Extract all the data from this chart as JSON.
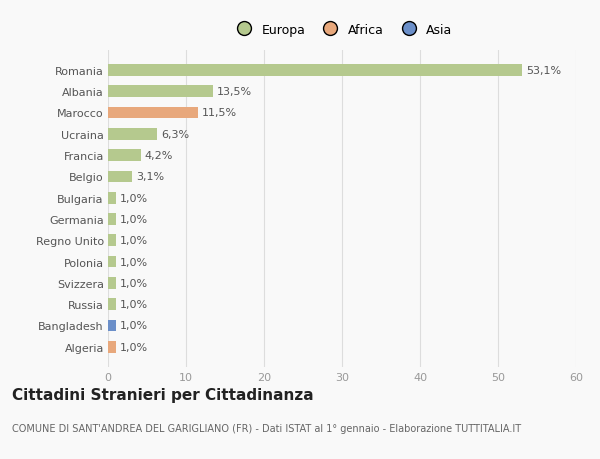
{
  "categories": [
    "Romania",
    "Albania",
    "Marocco",
    "Ucraina",
    "Francia",
    "Belgio",
    "Bulgaria",
    "Germania",
    "Regno Unito",
    "Polonia",
    "Svizzera",
    "Russia",
    "Bangladesh",
    "Algeria"
  ],
  "values": [
    53.1,
    13.5,
    11.5,
    6.3,
    4.2,
    3.1,
    1.0,
    1.0,
    1.0,
    1.0,
    1.0,
    1.0,
    1.0,
    1.0
  ],
  "labels": [
    "53,1%",
    "13,5%",
    "11,5%",
    "6,3%",
    "4,2%",
    "3,1%",
    "1,0%",
    "1,0%",
    "1,0%",
    "1,0%",
    "1,0%",
    "1,0%",
    "1,0%",
    "1,0%"
  ],
  "colors": [
    "#b5c98e",
    "#b5c98e",
    "#e8a87c",
    "#b5c98e",
    "#b5c98e",
    "#b5c98e",
    "#b5c98e",
    "#b5c98e",
    "#b5c98e",
    "#b5c98e",
    "#b5c98e",
    "#b5c98e",
    "#6b8fc9",
    "#e8a87c"
  ],
  "legend_labels": [
    "Europa",
    "Africa",
    "Asia"
  ],
  "legend_colors": [
    "#b5c98e",
    "#e8a87c",
    "#6b8fc9"
  ],
  "xlim": [
    0,
    60
  ],
  "xticks": [
    0,
    10,
    20,
    30,
    40,
    50,
    60
  ],
  "title": "Cittadini Stranieri per Cittadinanza",
  "subtitle": "COMUNE DI SANT'ANDREA DEL GARIGLIANO (FR) - Dati ISTAT al 1° gennaio - Elaborazione TUTTITALIA.IT",
  "bg_color": "#f9f9f9",
  "bar_height": 0.55,
  "grid_color": "#dddddd",
  "label_fontsize": 8,
  "tick_fontsize": 8,
  "ytick_fontsize": 8,
  "title_fontsize": 11,
  "subtitle_fontsize": 7,
  "legend_fontsize": 9
}
